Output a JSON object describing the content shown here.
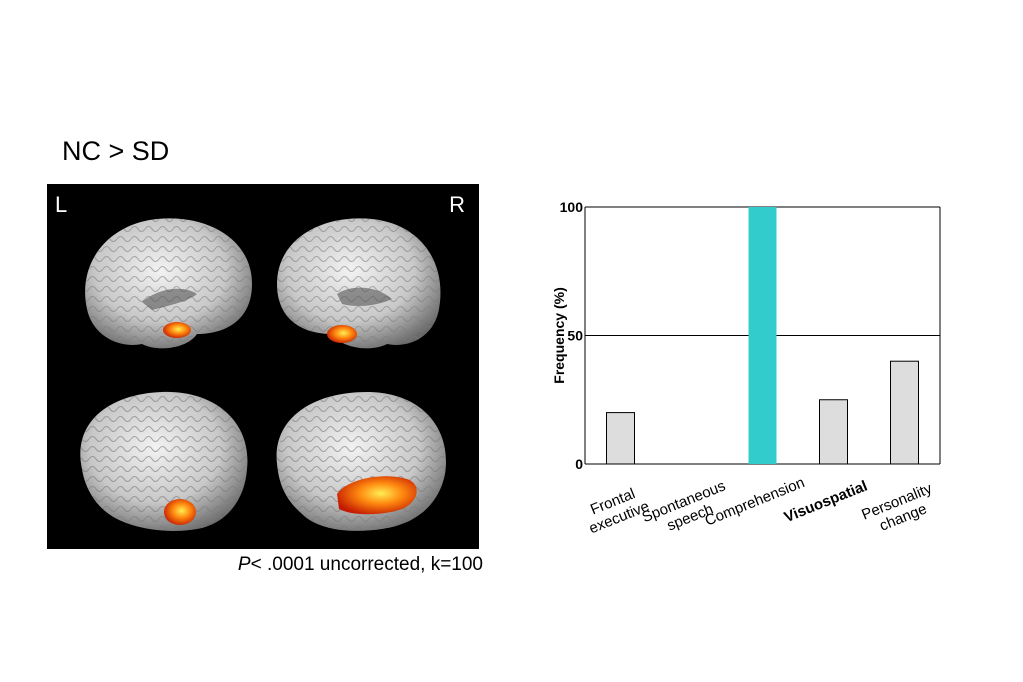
{
  "figure": {
    "title": "NC > SD",
    "left_hemisphere_label": "L",
    "right_hemisphere_label": "R",
    "caption_p": "P",
    "caption_rest": "< .0001 uncorrected, k=100"
  },
  "chart_data": {
    "type": "bar",
    "ylabel": "Frequency (%)",
    "ylim": [
      0,
      100
    ],
    "yticks": [
      0,
      50,
      100
    ],
    "grid": "horizontal",
    "categories": [
      {
        "lines": [
          "Frontal",
          "executive"
        ],
        "bold": false
      },
      {
        "lines": [
          "Spontaneous",
          "speech"
        ],
        "bold": false
      },
      {
        "lines": [
          "Comprehension"
        ],
        "bold": false
      },
      {
        "lines": [
          "Visuospatial"
        ],
        "bold": true
      },
      {
        "lines": [
          "Personality",
          "change"
        ],
        "bold": false
      }
    ],
    "values": [
      20,
      0,
      100,
      25,
      40
    ],
    "bar_colors": [
      "#dddddd",
      "#dddddd",
      "#33cccc",
      "#dddddd",
      "#dddddd"
    ]
  }
}
